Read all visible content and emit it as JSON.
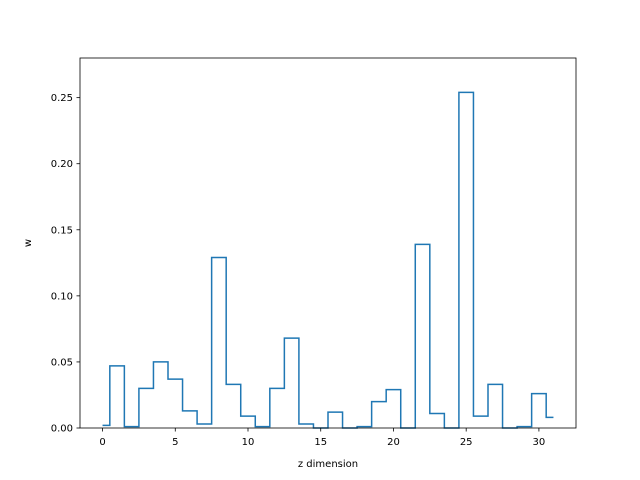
{
  "chart_data": {
    "type": "line",
    "drawstyle": "steps-mid",
    "title": "",
    "xlabel": "z dimension",
    "ylabel": "w",
    "xlim": [
      -1.55,
      32.55
    ],
    "ylim": [
      0,
      0.28
    ],
    "xticks": [
      0,
      5,
      10,
      15,
      20,
      25,
      30
    ],
    "yticks": [
      0.0,
      0.05,
      0.1,
      0.15,
      0.2,
      0.25
    ],
    "xtick_labels": [
      "0",
      "5",
      "10",
      "15",
      "20",
      "25",
      "30"
    ],
    "ytick_labels": [
      "0.00",
      "0.05",
      "0.10",
      "0.15",
      "0.20",
      "0.25"
    ],
    "grid": false,
    "color": "#1f77b4",
    "x": [
      0,
      1,
      2,
      3,
      4,
      5,
      6,
      7,
      8,
      9,
      10,
      11,
      12,
      13,
      14,
      15,
      16,
      17,
      18,
      19,
      20,
      21,
      22,
      23,
      24,
      25,
      26,
      27,
      28,
      29,
      30,
      31
    ],
    "values": [
      0.002,
      0.047,
      0.001,
      0.03,
      0.05,
      0.037,
      0.013,
      0.003,
      0.129,
      0.033,
      0.009,
      0.001,
      0.03,
      0.068,
      0.003,
      0.0,
      0.012,
      0.0,
      0.001,
      0.02,
      0.029,
      0.0,
      0.139,
      0.011,
      0.0,
      0.254,
      0.009,
      0.033,
      0.0,
      0.001,
      0.026,
      0.008
    ]
  }
}
